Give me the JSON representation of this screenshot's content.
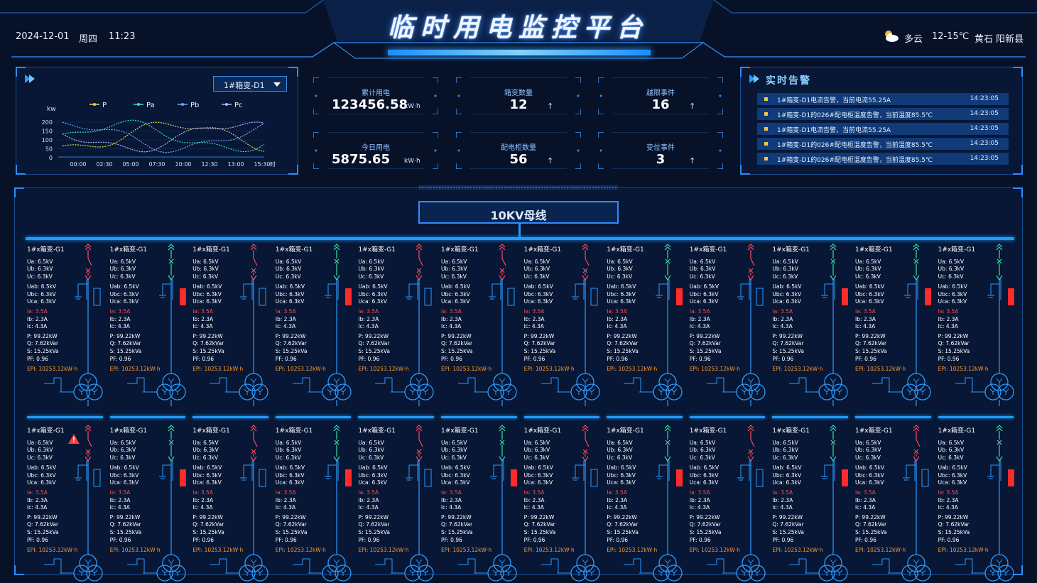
{
  "header": {
    "title": "临时用电监控平台",
    "date": "2024-12-01",
    "weekday": "周四",
    "time": "11:23",
    "weather": "多云",
    "temperature": "12-15℃",
    "location": "黄石 阳新县"
  },
  "trend": {
    "selector_value": "1#箱变-D1",
    "legend": [
      "P",
      "Pa",
      "Pb",
      "Pc"
    ],
    "colors": {
      "P": "#e8d84a",
      "Pa": "#3ee0c8",
      "Pb": "#6fa8ff",
      "Pc": "#b9b4ff"
    },
    "y_unit": "kw",
    "y_ticks": [
      "200",
      "150",
      "100",
      "50",
      "0"
    ],
    "x_ticks": [
      "00:00",
      "02:30",
      "05:00",
      "07:30",
      "10:00",
      "12:30",
      "13:00",
      "15:30"
    ],
    "x_unit": "时"
  },
  "stats": [
    {
      "label": "累计用电",
      "value": "123456.58",
      "unit": "kW·h",
      "trend": ""
    },
    {
      "label": "箱变数量",
      "value": "12",
      "unit": "",
      "trend": "↑"
    },
    {
      "label": "越限事件",
      "value": "16",
      "unit": "",
      "trend": "↑"
    },
    {
      "label": "今日用电",
      "value": "5875.65",
      "unit": "kW·h",
      "trend": ""
    },
    {
      "label": "配电柜数量",
      "value": "56",
      "unit": "",
      "trend": "↑"
    },
    {
      "label": "变位事件",
      "value": "3",
      "unit": "",
      "trend": "↑"
    }
  ],
  "alarms": {
    "title": "实时告警",
    "items": [
      {
        "text": "1#箱变-D1电流告警，当前电流55.25A",
        "time": "14:23:05"
      },
      {
        "text": "1#箱变-D1的026#配电柜温度告警，当前温度85.5℃",
        "time": "14:23:05"
      },
      {
        "text": "1#箱变-D1电流告警，当前电流55.25A",
        "time": "14:23:05"
      },
      {
        "text": "1#箱变-D1的026#配电柜温度告警，当前温度85.5℃",
        "time": "14:23:05"
      },
      {
        "text": "1#箱变-D1的026#配电柜温度告警，当前温度85.5℃",
        "time": "14:23:05"
      }
    ]
  },
  "bus": {
    "label": "10KV母线"
  },
  "unit_template": {
    "title": "1#x箱变-G1",
    "lines": [
      {
        "text": "Ua:  6.5kV",
        "tone": "white"
      },
      {
        "text": "Ub:  6.3kV",
        "tone": "white"
      },
      {
        "text": "Uc:  6.3kV",
        "tone": "white"
      },
      {
        "text": "Uab:  6.5kV",
        "tone": "white"
      },
      {
        "text": "Ubc:  6.3kV",
        "tone": "white"
      },
      {
        "text": "Uca:  6.3kV",
        "tone": "white"
      },
      {
        "text": "Ia:  3.5A",
        "tone": "red"
      },
      {
        "text": "Ib:  2.3A",
        "tone": "white"
      },
      {
        "text": "Ic:  4.3A",
        "tone": "white"
      },
      {
        "text": "P:  99.22kW",
        "tone": "white"
      },
      {
        "text": "Q:  7.62kVar",
        "tone": "white"
      },
      {
        "text": "S:  15.25kVa",
        "tone": "white"
      },
      {
        "text": "PF:  0.96",
        "tone": "white"
      },
      {
        "text": "EPI:  10253.12kW·h",
        "tone": "orange"
      }
    ]
  },
  "units_row1": [
    {
      "breaker": "open"
    },
    {
      "breaker": "closed"
    },
    {
      "breaker": "open"
    },
    {
      "breaker": "closed"
    },
    {
      "breaker": "open"
    },
    {
      "breaker": "open"
    },
    {
      "breaker": "open"
    },
    {
      "breaker": "closed"
    },
    {
      "breaker": "open"
    },
    {
      "breaker": "closed"
    },
    {
      "breaker": "closed"
    },
    {
      "breaker": "closed"
    }
  ],
  "units_row2": [
    {
      "breaker": "open",
      "warning": true
    },
    {
      "breaker": "closed"
    },
    {
      "breaker": "open"
    },
    {
      "breaker": "closed"
    },
    {
      "breaker": "open"
    },
    {
      "breaker": "closed"
    },
    {
      "breaker": "open"
    },
    {
      "breaker": "closed"
    },
    {
      "breaker": "open"
    },
    {
      "breaker": "closed"
    },
    {
      "breaker": "open"
    },
    {
      "breaker": "closed"
    }
  ]
}
